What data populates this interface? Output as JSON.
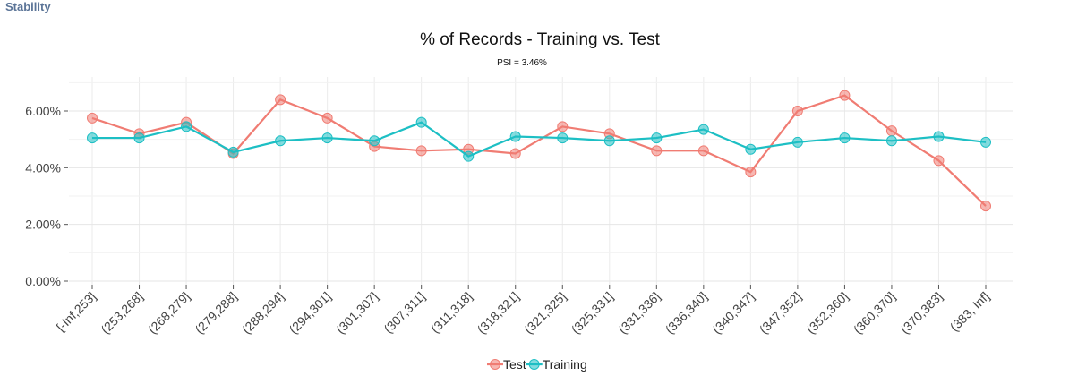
{
  "header": {
    "section_title": "Stability"
  },
  "chart_data": {
    "type": "line",
    "title": "% of Records - Training vs. Test",
    "subtitle": "PSI = 3.46%",
    "xlabel": "",
    "ylabel": "",
    "categories": [
      "[-Inf,253]",
      "(253,268]",
      "(268,279]",
      "(279,288]",
      "(288,294]",
      "(294,301]",
      "(301,307]",
      "(307,311]",
      "(311,318]",
      "(318,321]",
      "(321,325]",
      "(325,331]",
      "(331,336]",
      "(336,340]",
      "(340,347]",
      "(347,352]",
      "(352,360]",
      "(360,370]",
      "(370,383]",
      "(383, Inf]"
    ],
    "y_ticks": [
      "0.00%",
      "2.00%",
      "4.00%",
      "6.00%"
    ],
    "ylim": [
      0,
      7.2
    ],
    "grid": true,
    "legend_position": "bottom",
    "series": [
      {
        "name": "Test",
        "color": "#f07c73",
        "values": [
          5.75,
          5.2,
          5.6,
          4.5,
          6.4,
          5.75,
          4.75,
          4.6,
          4.65,
          4.5,
          5.45,
          5.2,
          4.6,
          4.6,
          3.85,
          6.0,
          6.55,
          5.3,
          4.25,
          2.65
        ]
      },
      {
        "name": "Training",
        "color": "#1dbfc4",
        "values": [
          5.05,
          5.05,
          5.45,
          4.55,
          4.95,
          5.05,
          4.95,
          5.6,
          4.4,
          5.1,
          5.05,
          4.95,
          5.05,
          5.35,
          4.65,
          4.9,
          5.05,
          4.95,
          5.1,
          4.9
        ]
      }
    ]
  }
}
